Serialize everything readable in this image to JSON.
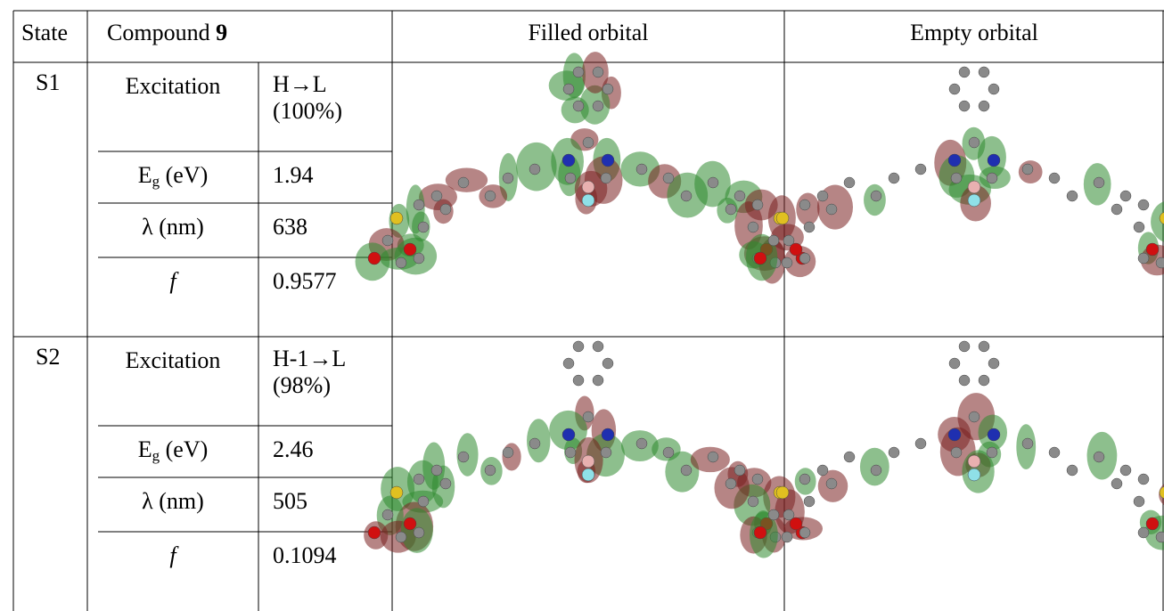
{
  "table": {
    "header": {
      "state": "State",
      "compound": {
        "text": "Compound ",
        "bold": "9"
      },
      "filled": "Filled orbital",
      "empty": "Empty orbital"
    },
    "rows": [
      {
        "state": "S1",
        "excitation_label": "Excitation",
        "excitation": "H→L (100%)",
        "eg_label": {
          "main": "E",
          "sub": "g",
          "rest": " (eV)"
        },
        "eg": 1.94,
        "lambda_label": "λ (nm)",
        "lambda": 638,
        "f_label": "f",
        "f": 0.9577
      },
      {
        "state": "S2",
        "excitation_label": "Excitation",
        "excitation": "H-1→L (98%)",
        "eg_label": {
          "main": "E",
          "sub": "g",
          "rest": " (eV)"
        },
        "eg": 2.46,
        "lambda_label": "λ (nm)",
        "lambda": 505,
        "f_label": "f",
        "f": 0.1094
      }
    ]
  }
}
